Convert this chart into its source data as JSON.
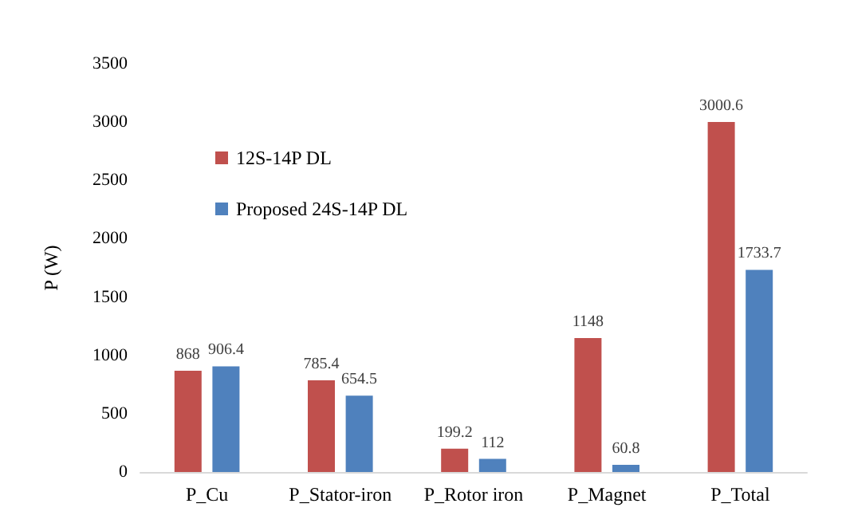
{
  "chart_data": {
    "type": "bar",
    "ylabel": "P (W)",
    "categories": [
      "P_Cu",
      "P_Stator-iron",
      "P_Rotor iron",
      "P_Magnet",
      "P_Total"
    ],
    "series": [
      {
        "name": "12S-14P DL",
        "color": "#c0504d",
        "values": [
          868,
          785.4,
          199.2,
          1148,
          3000.6
        ]
      },
      {
        "name": "Proposed 24S-14P DL",
        "color": "#4f81bd",
        "values": [
          906.4,
          654.5,
          112,
          60.8,
          1733.7
        ]
      }
    ],
    "ylim": [
      0,
      3500
    ],
    "yticks": [
      0,
      500,
      1000,
      1500,
      2000,
      2500,
      3000,
      3500
    ],
    "grid": false,
    "legend": "top left",
    "data_labels": true
  }
}
